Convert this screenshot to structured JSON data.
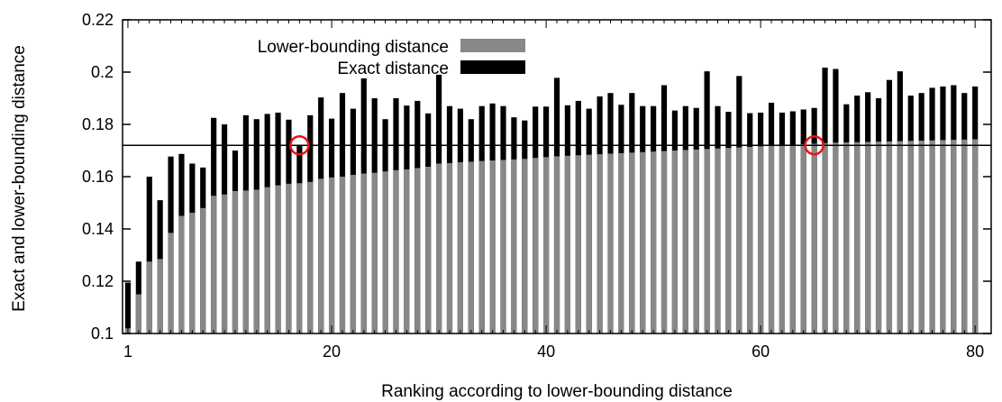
{
  "chart_data": {
    "type": "bar",
    "title": "",
    "xlabel": "Ranking according to lower-bounding distance",
    "ylabel": "Exact and lower-bounding distance",
    "xlim": [
      0.5,
      81.5
    ],
    "ylim": [
      0.1,
      0.22
    ],
    "x_ticks": [
      "1",
      "20",
      "40",
      "60",
      "80"
    ],
    "x_tick_values": [
      1,
      20,
      40,
      60,
      80
    ],
    "y_ticks": [
      "0.1",
      "0.12",
      "0.14",
      "0.16",
      "0.18",
      "0.2",
      "0.22"
    ],
    "y_tick_values": [
      0.1,
      0.12,
      0.14,
      0.16,
      0.18,
      0.2,
      0.22
    ],
    "legend_position": "top-center",
    "x": [
      1,
      2,
      3,
      4,
      5,
      6,
      7,
      8,
      9,
      10,
      11,
      12,
      13,
      14,
      15,
      16,
      17,
      18,
      19,
      20,
      21,
      22,
      23,
      24,
      25,
      26,
      27,
      28,
      29,
      30,
      31,
      32,
      33,
      34,
      35,
      36,
      37,
      38,
      39,
      40,
      41,
      42,
      43,
      44,
      45,
      46,
      47,
      48,
      49,
      50,
      51,
      52,
      53,
      54,
      55,
      56,
      57,
      58,
      59,
      60,
      61,
      62,
      63,
      64,
      65,
      66,
      67,
      68,
      69,
      70,
      71,
      72,
      73,
      74,
      75,
      76,
      77,
      78,
      79,
      80
    ],
    "series": [
      {
        "name": "Exact distance",
        "color": "#000000",
        "values": [
          0.1195,
          0.1275,
          0.16,
          0.151,
          0.1677,
          0.1687,
          0.165,
          0.1635,
          0.1825,
          0.18,
          0.17,
          0.1835,
          0.182,
          0.184,
          0.1845,
          0.1818,
          0.172,
          0.1835,
          0.1903,
          0.1822,
          0.192,
          0.186,
          0.1976,
          0.19,
          0.182,
          0.19,
          0.1872,
          0.189,
          0.1842,
          0.199,
          0.187,
          0.186,
          0.182,
          0.187,
          0.188,
          0.187,
          0.1827,
          0.1815,
          0.1868,
          0.1868,
          0.1978,
          0.1873,
          0.189,
          0.186,
          0.1907,
          0.192,
          0.1875,
          0.192,
          0.187,
          0.187,
          0.195,
          0.1853,
          0.187,
          0.1863,
          0.2003,
          0.187,
          0.1848,
          0.1985,
          0.1843,
          0.1845,
          0.1883,
          0.1845,
          0.185,
          0.1857,
          0.1863,
          0.2017,
          0.2012,
          0.1877,
          0.191,
          0.1923,
          0.19,
          0.197,
          0.2003,
          0.191,
          0.192,
          0.194,
          0.1945,
          0.195,
          0.192,
          0.1945
        ]
      },
      {
        "name": "Lower-bounding distance",
        "color": "#888888",
        "values": [
          0.102,
          0.115,
          0.1275,
          0.1285,
          0.1385,
          0.145,
          0.1462,
          0.148,
          0.1527,
          0.1532,
          0.1545,
          0.1547,
          0.155,
          0.156,
          0.1567,
          0.1573,
          0.1575,
          0.158,
          0.1592,
          0.1597,
          0.16,
          0.1607,
          0.1612,
          0.1615,
          0.162,
          0.1625,
          0.1628,
          0.1633,
          0.1638,
          0.165,
          0.1652,
          0.1655,
          0.1657,
          0.166,
          0.1662,
          0.1664,
          0.1666,
          0.1668,
          0.1672,
          0.1675,
          0.1678,
          0.168,
          0.1682,
          0.1684,
          0.1686,
          0.1688,
          0.169,
          0.1692,
          0.1694,
          0.1696,
          0.1698,
          0.17,
          0.1702,
          0.1704,
          0.1706,
          0.1708,
          0.171,
          0.1712,
          0.1714,
          0.1716,
          0.1718,
          0.172,
          0.1722,
          0.1724,
          0.1726,
          0.1728,
          0.173,
          0.1731,
          0.1732,
          0.1733,
          0.1734,
          0.1735,
          0.1736,
          0.1737,
          0.1738,
          0.1739,
          0.174,
          0.1741,
          0.1742,
          0.1743
        ]
      }
    ],
    "threshold_line": {
      "y": 0.172
    },
    "markers": [
      {
        "x": 17,
        "y": 0.172,
        "shape": "circle",
        "color": "#ee1111"
      },
      {
        "x": 65,
        "y": 0.172,
        "shape": "circle",
        "color": "#ee1111"
      }
    ],
    "grid": false
  }
}
